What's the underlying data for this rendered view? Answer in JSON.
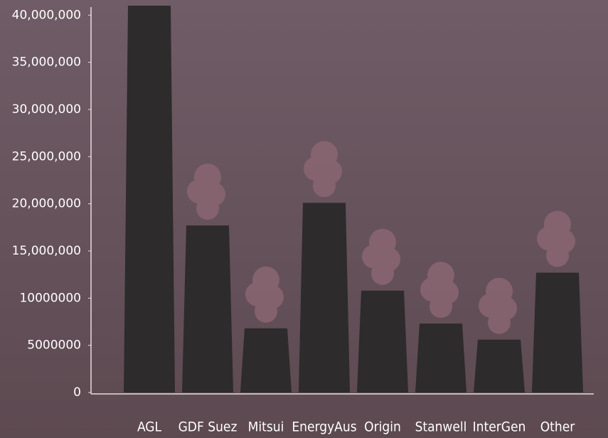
{
  "chart_data": {
    "type": "bar",
    "categories": [
      "AGL",
      "GDF Suez",
      "Mitsui",
      "EnergyAus",
      "Origin",
      "Stanwell",
      "InterGen",
      "Other"
    ],
    "values": [
      41000000,
      17700000,
      6800000,
      20100000,
      10800000,
      7300000,
      5600000,
      12700000
    ],
    "color": "#2d2b2b",
    "ylim": [
      0,
      41000000
    ],
    "yticks": [
      0,
      5000000,
      10000000,
      {
        "value": 15000000,
        "label": "15,000,000"
      },
      {
        "value": 20000000,
        "label": "20,000,000"
      },
      {
        "value": 25000000,
        "label": "25,000,000"
      },
      {
        "value": 30000000,
        "label": "30,000,000"
      },
      {
        "value": 35000000,
        "label": "35,000,000"
      },
      {
        "value": 40000000,
        "label": "40,000,000"
      }
    ],
    "grid": false
  }
}
